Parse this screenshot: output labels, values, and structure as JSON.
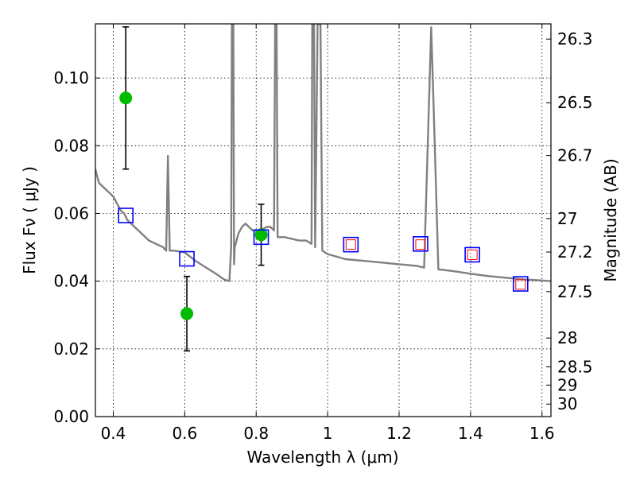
{
  "chart_data": {
    "type": "scatter",
    "title": "",
    "xlabel": "Wavelength  λ (μm)",
    "ylabel": "Flux  Fν  ( μJy )",
    "y2label": "Magnitude (AB)",
    "xlim": [
      0.35,
      1.625
    ],
    "ylim": [
      0.0,
      0.116
    ],
    "grid": true,
    "x_ticks": [
      0.4,
      0.6,
      0.8,
      1.0,
      1.2,
      1.4,
      1.6
    ],
    "x_tick_labels": [
      "0.4",
      "0.6",
      "0.8",
      "1",
      "1.2",
      "1.4",
      "1.6"
    ],
    "y_ticks": [
      0.0,
      0.02,
      0.04,
      0.06,
      0.08,
      0.1
    ],
    "y_tick_labels": [
      "0.00",
      "0.02",
      "0.04",
      "0.06",
      "0.08",
      "0.10"
    ],
    "y2_ticks": [
      {
        "label": "26.3",
        "flux": 0.1115
      },
      {
        "label": "26.5",
        "flux": 0.0927
      },
      {
        "label": "26.7",
        "flux": 0.0771
      },
      {
        "label": "27",
        "flux": 0.0585
      },
      {
        "label": "27.2",
        "flux": 0.0486
      },
      {
        "label": "27.5",
        "flux": 0.0369
      },
      {
        "label": "28",
        "flux": 0.0232
      },
      {
        "label": "28.5",
        "flux": 0.0147
      },
      {
        "label": "29",
        "flux": 0.0093
      },
      {
        "label": "30",
        "flux": 0.0037
      }
    ],
    "series": [
      {
        "kind": "errorbar",
        "color": "#00bb00",
        "points": [
          {
            "x": 0.435,
            "y": 0.0941,
            "ylo": 0.0731,
            "yhi": 0.1151
          },
          {
            "x": 0.606,
            "y": 0.0304,
            "ylo": 0.0194,
            "yhi": 0.0414
          },
          {
            "x": 0.814,
            "y": 0.0537,
            "ylo": 0.0447,
            "yhi": 0.0627
          }
        ]
      },
      {
        "kind": "square-open",
        "color": "#0000ff",
        "points": [
          {
            "x": 0.435,
            "y": 0.0594
          },
          {
            "x": 0.606,
            "y": 0.0466
          },
          {
            "x": 0.814,
            "y": 0.053
          },
          {
            "x": 1.065,
            "y": 0.0508
          },
          {
            "x": 1.26,
            "y": 0.051
          },
          {
            "x": 1.405,
            "y": 0.0478
          },
          {
            "x": 1.54,
            "y": 0.0392
          }
        ]
      },
      {
        "kind": "square-open-small",
        "color": "#ff0000",
        "points": [
          {
            "x": 1.065,
            "y": 0.0508
          },
          {
            "x": 1.26,
            "y": 0.0508
          },
          {
            "x": 1.405,
            "y": 0.0478
          },
          {
            "x": 1.54,
            "y": 0.039
          }
        ]
      },
      {
        "kind": "line",
        "color": "#808080",
        "points": [
          [
            0.35,
            0.073
          ],
          [
            0.36,
            0.069
          ],
          [
            0.37,
            0.068
          ],
          [
            0.38,
            0.067
          ],
          [
            0.39,
            0.066
          ],
          [
            0.4,
            0.065
          ],
          [
            0.41,
            0.063
          ],
          [
            0.42,
            0.061
          ],
          [
            0.43,
            0.06
          ],
          [
            0.44,
            0.058
          ],
          [
            0.45,
            0.057
          ],
          [
            0.46,
            0.056
          ],
          [
            0.47,
            0.055
          ],
          [
            0.48,
            0.054
          ],
          [
            0.49,
            0.053
          ],
          [
            0.5,
            0.052
          ],
          [
            0.52,
            0.051
          ],
          [
            0.54,
            0.05
          ],
          [
            0.548,
            0.049
          ],
          [
            0.553,
            0.077
          ],
          [
            0.558,
            0.049
          ],
          [
            0.57,
            0.049
          ],
          [
            0.6,
            0.0485
          ],
          [
            0.63,
            0.046
          ],
          [
            0.66,
            0.044
          ],
          [
            0.69,
            0.042
          ],
          [
            0.71,
            0.0405
          ],
          [
            0.725,
            0.04
          ],
          [
            0.73,
            0.05
          ],
          [
            0.732,
            0.116
          ],
          [
            0.736,
            0.116
          ],
          [
            0.738,
            0.045
          ],
          [
            0.74,
            0.05
          ],
          [
            0.75,
            0.054
          ],
          [
            0.76,
            0.056
          ],
          [
            0.77,
            0.057
          ],
          [
            0.78,
            0.056
          ],
          [
            0.79,
            0.055
          ],
          [
            0.8,
            0.055
          ],
          [
            0.81,
            0.055
          ],
          [
            0.83,
            0.056
          ],
          [
            0.84,
            0.056
          ],
          [
            0.85,
            0.055
          ],
          [
            0.853,
            0.116
          ],
          [
            0.857,
            0.116
          ],
          [
            0.86,
            0.053
          ],
          [
            0.88,
            0.053
          ],
          [
            0.9,
            0.0525
          ],
          [
            0.92,
            0.052
          ],
          [
            0.94,
            0.052
          ],
          [
            0.955,
            0.051
          ],
          [
            0.957,
            0.116
          ],
          [
            0.962,
            0.116
          ],
          [
            0.965,
            0.05
          ],
          [
            0.972,
            0.116
          ],
          [
            0.98,
            0.116
          ],
          [
            0.985,
            0.049
          ],
          [
            1.0,
            0.048
          ],
          [
            1.05,
            0.0465
          ],
          [
            1.1,
            0.046
          ],
          [
            1.15,
            0.0455
          ],
          [
            1.2,
            0.045
          ],
          [
            1.25,
            0.0445
          ],
          [
            1.27,
            0.044
          ],
          [
            1.28,
            0.08
          ],
          [
            1.29,
            0.115
          ],
          [
            1.3,
            0.08
          ],
          [
            1.31,
            0.0435
          ],
          [
            1.35,
            0.043
          ],
          [
            1.4,
            0.0422
          ],
          [
            1.45,
            0.0415
          ],
          [
            1.5,
            0.041
          ],
          [
            1.55,
            0.0405
          ],
          [
            1.6,
            0.0402
          ],
          [
            1.625,
            0.04
          ]
        ]
      }
    ]
  }
}
